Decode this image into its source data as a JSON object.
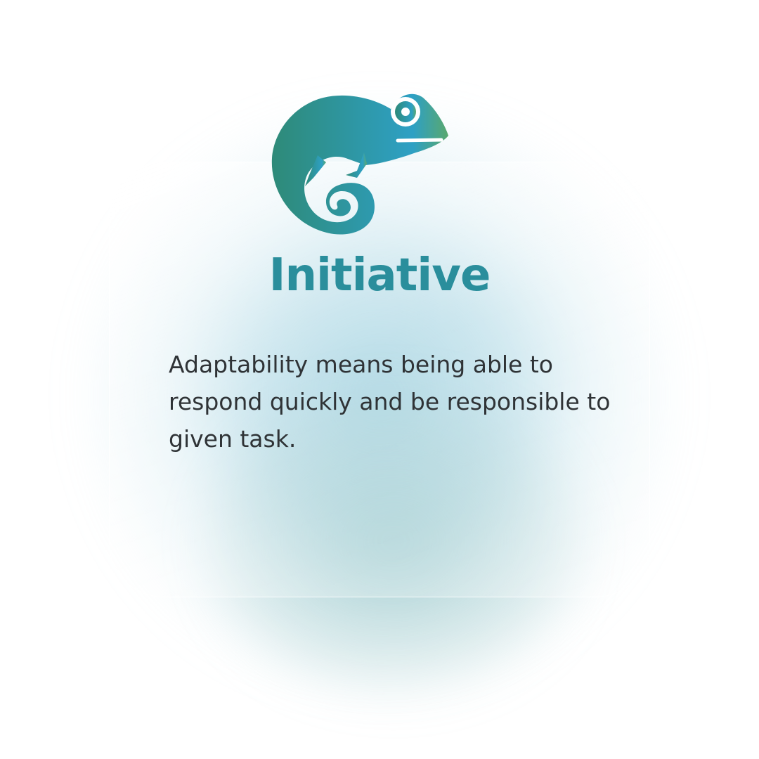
{
  "card": {
    "icon": "chameleon-icon",
    "title": "Initiative",
    "description": "Adaptability means being able to respond quickly and be responsible to given task."
  },
  "colors": {
    "title": "#2a8e9c",
    "text": "#2f3336",
    "icon_gradient_start": "#2e8a78",
    "icon_gradient_end": "#2ea0c4",
    "glow": "#82c3d7"
  }
}
